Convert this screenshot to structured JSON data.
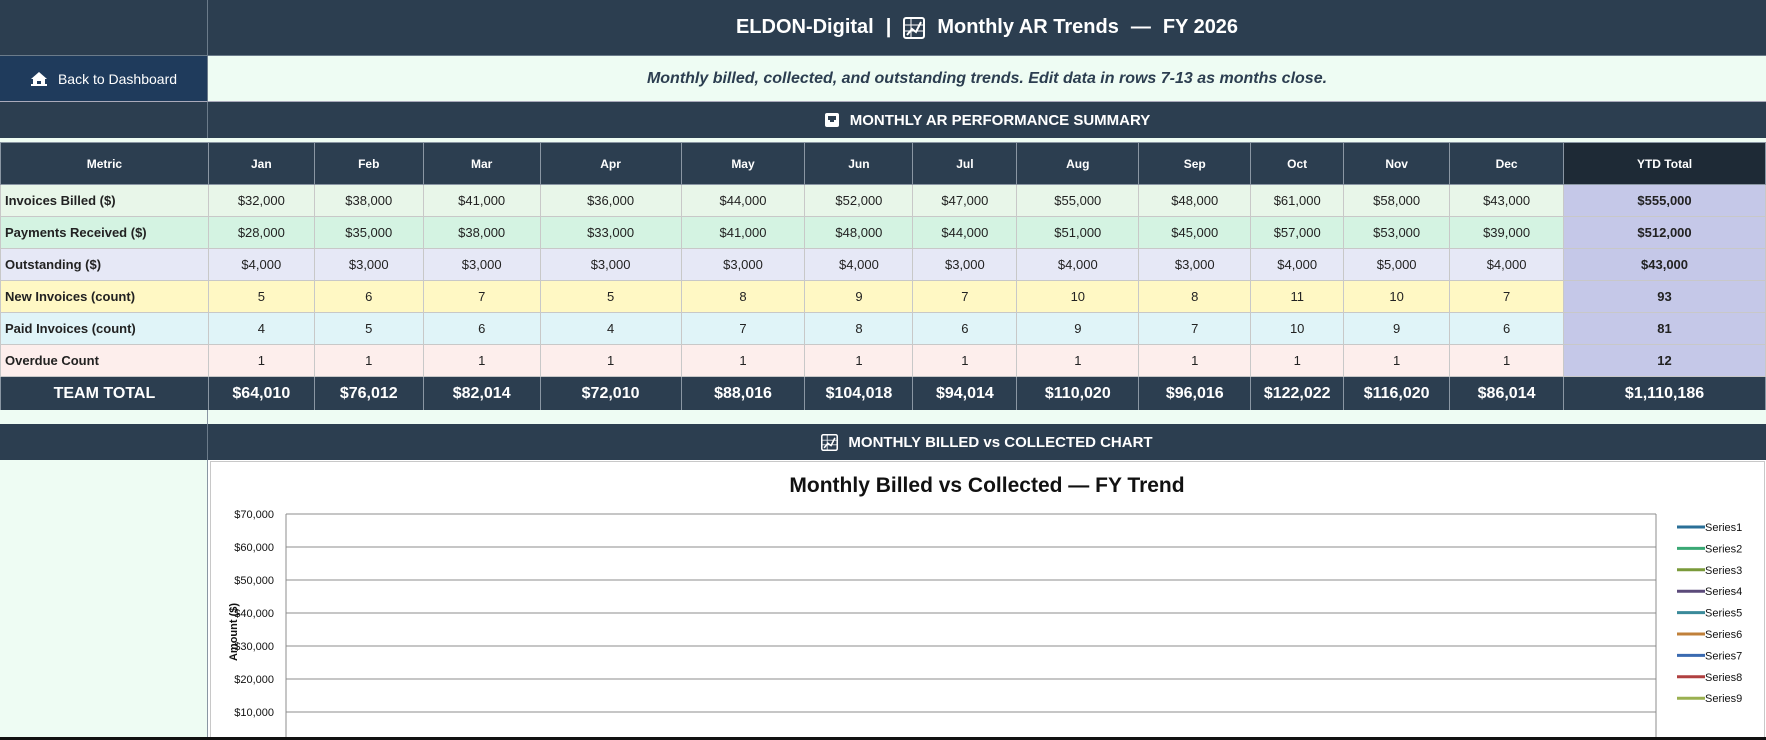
{
  "header": {
    "brand": "ELDON-Digital",
    "separator": "|",
    "title": "Monthly AR Trends",
    "dash": "—",
    "fy": "FY 2026",
    "subtitle": "Monthly billed, collected, and outstanding trends. Edit data in rows 7-13 as months close."
  },
  "back_button": {
    "label": "Back to Dashboard",
    "icon": "home-icon"
  },
  "section_summary": {
    "title": "MONTHLY AR PERFORMANCE SUMMARY",
    "icon": "archive-box-icon"
  },
  "section_chart": {
    "title": "MONTHLY BILLED vs COLLECTED CHART",
    "icon": "chart-icon"
  },
  "table": {
    "metric_header": "Metric",
    "months": [
      "Jan",
      "Feb",
      "Mar",
      "Apr",
      "May",
      "Jun",
      "Jul",
      "Aug",
      "Sep",
      "Oct",
      "Nov",
      "Dec"
    ],
    "ytd_header": "YTD Total",
    "rows": [
      {
        "label": "Invoices Billed ($)",
        "values": [
          "$32,000",
          "$38,000",
          "$41,000",
          "$36,000",
          "$44,000",
          "$52,000",
          "$47,000",
          "$55,000",
          "$48,000",
          "$61,000",
          "$58,000",
          "$43,000"
        ],
        "ytd": "$555,000"
      },
      {
        "label": "Payments Received ($)",
        "values": [
          "$28,000",
          "$35,000",
          "$38,000",
          "$33,000",
          "$41,000",
          "$48,000",
          "$44,000",
          "$51,000",
          "$45,000",
          "$57,000",
          "$53,000",
          "$39,000"
        ],
        "ytd": "$512,000"
      },
      {
        "label": "Outstanding ($)",
        "values": [
          "$4,000",
          "$3,000",
          "$3,000",
          "$3,000",
          "$3,000",
          "$4,000",
          "$3,000",
          "$4,000",
          "$3,000",
          "$4,000",
          "$5,000",
          "$4,000"
        ],
        "ytd": "$43,000"
      },
      {
        "label": "New Invoices (count)",
        "values": [
          "5",
          "6",
          "7",
          "5",
          "8",
          "9",
          "7",
          "10",
          "8",
          "11",
          "10",
          "7"
        ],
        "ytd": "93"
      },
      {
        "label": "Paid Invoices (count)",
        "values": [
          "4",
          "5",
          "6",
          "4",
          "7",
          "8",
          "6",
          "9",
          "7",
          "10",
          "9",
          "6"
        ],
        "ytd": "81"
      },
      {
        "label": "Overdue Count",
        "values": [
          "1",
          "1",
          "1",
          "1",
          "1",
          "1",
          "1",
          "1",
          "1",
          "1",
          "1",
          "1"
        ],
        "ytd": "12"
      }
    ],
    "total": {
      "label": "TEAM TOTAL",
      "values": [
        "$64,010",
        "$76,012",
        "$82,014",
        "$72,010",
        "$88,016",
        "$104,018",
        "$94,014",
        "$110,020",
        "$96,016",
        "$122,022",
        "$116,020",
        "$86,014"
      ],
      "ytd": "$1,110,186"
    }
  },
  "colors": {
    "header_navy": "#2c3e50",
    "button_navy": "#1f3b5c",
    "ytd_fill": "#c5c8e8",
    "background_mint": "#eefcf3"
  },
  "chart_data": {
    "type": "line",
    "title": "Monthly Billed vs Collected — FY Trend",
    "xlabel": "",
    "ylabel": "Amount ($)",
    "ylim": [
      0,
      70000
    ],
    "y_ticks": [
      "$10,000",
      "$20,000",
      "$30,000",
      "$40,000",
      "$50,000",
      "$60,000",
      "$70,000"
    ],
    "grid": true,
    "legend_position": "right",
    "series": [
      {
        "name": "Series1",
        "color": "#2a6f97",
        "values": []
      },
      {
        "name": "Series2",
        "color": "#3aa874",
        "values": []
      },
      {
        "name": "Series3",
        "color": "#7a9a3a",
        "values": []
      },
      {
        "name": "Series4",
        "color": "#5b4a7a",
        "values": []
      },
      {
        "name": "Series5",
        "color": "#3a8a9a",
        "values": []
      },
      {
        "name": "Series6",
        "color": "#c0803a",
        "values": []
      },
      {
        "name": "Series7",
        "color": "#3a6ab0",
        "values": []
      },
      {
        "name": "Series8",
        "color": "#b04040",
        "values": []
      },
      {
        "name": "Series9",
        "color": "#9ab050",
        "values": []
      }
    ]
  }
}
